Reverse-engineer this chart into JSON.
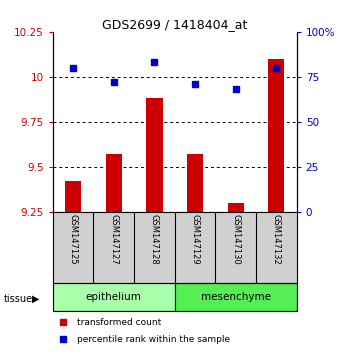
{
  "title": "GDS2699 / 1418404_at",
  "samples": [
    "GSM147125",
    "GSM147127",
    "GSM147128",
    "GSM147129",
    "GSM147130",
    "GSM147132"
  ],
  "bar_values": [
    9.42,
    9.57,
    9.88,
    9.57,
    9.3,
    10.1
  ],
  "dot_values": [
    80,
    72,
    83,
    71,
    68,
    80
  ],
  "ylim_left": [
    9.25,
    10.25
  ],
  "ylim_right": [
    0,
    100
  ],
  "yticks_left": [
    9.25,
    9.5,
    9.75,
    10.0,
    10.25
  ],
  "yticks_right": [
    0,
    25,
    50,
    75,
    100
  ],
  "ytick_labels_left": [
    "9.25",
    "9.5",
    "9.75",
    "10",
    "10.25"
  ],
  "ytick_labels_right": [
    "0",
    "25",
    "50",
    "75",
    "100%"
  ],
  "bar_color": "#cc0000",
  "dot_color": "#0000cc",
  "bar_bottom": 9.25,
  "tissue_groups": [
    {
      "label": "epithelium",
      "indices": [
        0,
        1,
        2
      ],
      "color": "#aaffaa"
    },
    {
      "label": "mesenchyme",
      "indices": [
        3,
        4,
        5
      ],
      "color": "#55ee55"
    }
  ],
  "tissue_label": "tissue",
  "legend_items": [
    {
      "label": "transformed count",
      "color": "#cc0000",
      "marker": "s"
    },
    {
      "label": "percentile rank within the sample",
      "color": "#0000cc",
      "marker": "s"
    }
  ],
  "grid_yticks": [
    9.5,
    9.75,
    10.0
  ],
  "sample_bg": "#d0d0d0",
  "fig_bg": "#ffffff",
  "bar_width": 0.4,
  "dot_size": 4
}
